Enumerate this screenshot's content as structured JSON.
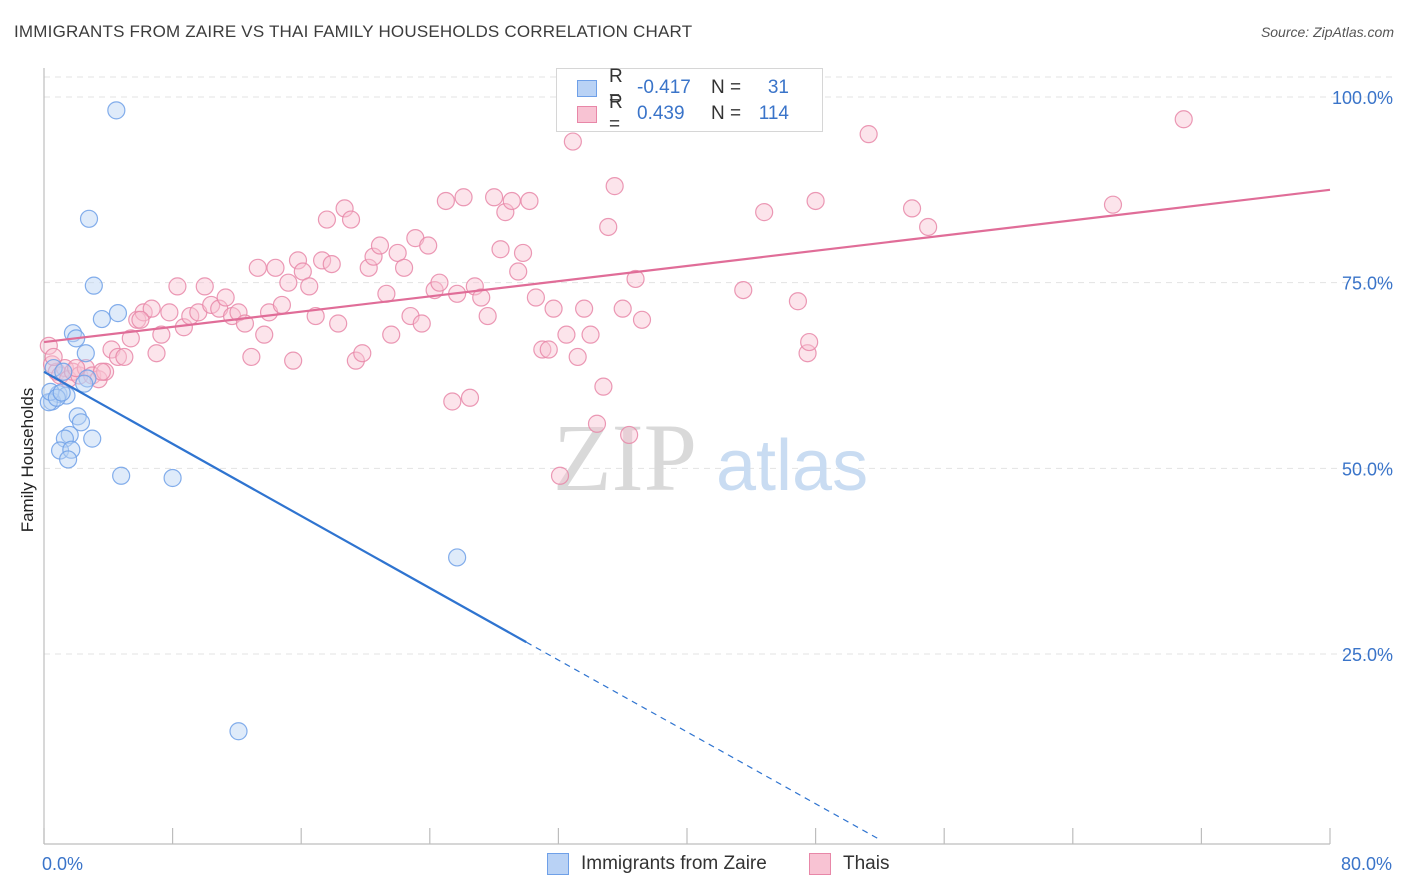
{
  "header": {
    "title": "IMMIGRANTS FROM ZAIRE VS THAI FAMILY HOUSEHOLDS CORRELATION CHART",
    "source": "Source: ZipAtlas.com"
  },
  "watermark": {
    "zip": "ZIP",
    "atlas": "atlas"
  },
  "legend": {
    "rows": [
      {
        "r_label": "R =",
        "r_value": "-0.417",
        "n_label": "N =",
        "n_value": "31",
        "color": "#6fa0e8",
        "fill": "#b9d2f5"
      },
      {
        "r_label": "R =",
        "r_value": "0.439",
        "n_label": "N =",
        "n_value": "114",
        "color": "#e887a8",
        "fill": "#f8c3d3"
      }
    ]
  },
  "bottom_legend": {
    "items": [
      {
        "label": "Immigrants from Zaire",
        "color": "#6fa0e8",
        "fill": "#b9d2f5"
      },
      {
        "label": "Thais",
        "color": "#e887a8",
        "fill": "#f8c3d3"
      }
    ]
  },
  "chart_data": {
    "type": "scatter",
    "title": "IMMIGRANTS FROM ZAIRE VS THAI FAMILY HOUSEHOLDS CORRELATION CHART",
    "xlabel": "",
    "ylabel": "Family Households",
    "xlim": [
      0,
      80
    ],
    "ylim": [
      0,
      103
    ],
    "x_tick_labels": [
      {
        "value": 0,
        "label": "0.0%"
      },
      {
        "value": 80,
        "label": "80.0%"
      }
    ],
    "x_minor_ticks": [
      0,
      8,
      16,
      24,
      32,
      40,
      48,
      56,
      64,
      72,
      80
    ],
    "y_ticks": [
      {
        "value": 25,
        "label": "25.0%"
      },
      {
        "value": 50,
        "label": "50.0%"
      },
      {
        "value": 75,
        "label": "75.0%"
      },
      {
        "value": 100,
        "label": "100.0%"
      }
    ],
    "grid": true,
    "series": [
      {
        "name": "Immigrants from Zaire",
        "color": "#6fa0e8",
        "fill": "#b9d2f5",
        "line_color": "#2f74d0",
        "trend": {
          "x0": 0,
          "y0": 63.0,
          "x1": 30.0,
          "y1": 26.6,
          "x_dash_end": 52,
          "y_dash_end": 0
        },
        "points": [
          [
            4.5,
            98.2
          ],
          [
            2.8,
            83.6
          ],
          [
            3.1,
            74.6
          ],
          [
            4.6,
            70.9
          ],
          [
            3.6,
            70.1
          ],
          [
            1.8,
            68.2
          ],
          [
            2.0,
            67.5
          ],
          [
            2.6,
            65.5
          ],
          [
            0.6,
            63.5
          ],
          [
            1.2,
            63.0
          ],
          [
            2.7,
            62.1
          ],
          [
            2.5,
            61.4
          ],
          [
            0.9,
            60.0
          ],
          [
            1.4,
            59.8
          ],
          [
            0.5,
            59.0
          ],
          [
            0.3,
            58.9
          ],
          [
            2.1,
            57.0
          ],
          [
            2.3,
            56.2
          ],
          [
            1.6,
            54.5
          ],
          [
            1.3,
            54.0
          ],
          [
            3.0,
            54.0
          ],
          [
            1.0,
            52.4
          ],
          [
            1.7,
            52.5
          ],
          [
            1.5,
            51.2
          ],
          [
            4.8,
            49.0
          ],
          [
            8.0,
            48.7
          ],
          [
            25.7,
            38.0
          ],
          [
            12.1,
            14.6
          ],
          [
            0.4,
            60.3
          ],
          [
            0.8,
            59.5
          ],
          [
            1.1,
            60.2
          ]
        ]
      },
      {
        "name": "Thais",
        "color": "#e887a8",
        "fill": "#f8c3d3",
        "line_color": "#e06d98",
        "trend": {
          "x0": 0,
          "y0": 67.0,
          "x1": 80.0,
          "y1": 87.5
        },
        "points": [
          [
            0.3,
            66.5
          ],
          [
            0.5,
            64.0
          ],
          [
            0.8,
            63.0
          ],
          [
            1.0,
            62.5
          ],
          [
            1.3,
            63.5
          ],
          [
            1.5,
            62.0
          ],
          [
            1.8,
            63.0
          ],
          [
            2.2,
            62.5
          ],
          [
            2.6,
            63.5
          ],
          [
            3.0,
            62.5
          ],
          [
            3.4,
            62.0
          ],
          [
            3.8,
            63.0
          ],
          [
            4.2,
            66.0
          ],
          [
            4.6,
            65.0
          ],
          [
            5.0,
            65.0
          ],
          [
            5.4,
            67.5
          ],
          [
            5.8,
            70.0
          ],
          [
            6.2,
            71.0
          ],
          [
            6.7,
            71.5
          ],
          [
            7.0,
            65.5
          ],
          [
            7.3,
            68.0
          ],
          [
            7.8,
            71.0
          ],
          [
            8.3,
            74.5
          ],
          [
            8.7,
            69.0
          ],
          [
            9.1,
            70.5
          ],
          [
            9.6,
            71.0
          ],
          [
            10.0,
            74.5
          ],
          [
            10.4,
            72.0
          ],
          [
            10.9,
            71.5
          ],
          [
            11.3,
            73.0
          ],
          [
            11.7,
            70.5
          ],
          [
            12.1,
            71.0
          ],
          [
            12.5,
            69.5
          ],
          [
            12.9,
            65.0
          ],
          [
            13.3,
            77.0
          ],
          [
            13.7,
            68.0
          ],
          [
            14.0,
            71.0
          ],
          [
            14.4,
            77.0
          ],
          [
            14.8,
            72.0
          ],
          [
            15.2,
            75.0
          ],
          [
            15.5,
            64.5
          ],
          [
            15.8,
            78.0
          ],
          [
            16.1,
            76.5
          ],
          [
            16.5,
            74.5
          ],
          [
            16.9,
            70.5
          ],
          [
            17.3,
            78.0
          ],
          [
            17.6,
            83.5
          ],
          [
            17.9,
            77.5
          ],
          [
            18.3,
            69.5
          ],
          [
            18.7,
            85.0
          ],
          [
            19.1,
            83.5
          ],
          [
            19.4,
            64.5
          ],
          [
            19.8,
            65.5
          ],
          [
            20.2,
            77.0
          ],
          [
            20.5,
            78.5
          ],
          [
            20.9,
            80.0
          ],
          [
            21.3,
            73.5
          ],
          [
            21.6,
            68.0
          ],
          [
            22.0,
            79.0
          ],
          [
            22.4,
            77.0
          ],
          [
            22.8,
            70.5
          ],
          [
            23.1,
            81.0
          ],
          [
            23.5,
            69.5
          ],
          [
            23.9,
            80.0
          ],
          [
            24.3,
            74.0
          ],
          [
            24.6,
            75.0
          ],
          [
            25.0,
            86.0
          ],
          [
            25.4,
            59.0
          ],
          [
            25.7,
            73.5
          ],
          [
            26.1,
            86.5
          ],
          [
            26.5,
            59.5
          ],
          [
            26.8,
            74.5
          ],
          [
            27.2,
            73.0
          ],
          [
            27.6,
            70.5
          ],
          [
            28.0,
            86.5
          ],
          [
            28.4,
            79.5
          ],
          [
            28.7,
            84.5
          ],
          [
            29.1,
            86.0
          ],
          [
            29.5,
            76.5
          ],
          [
            29.8,
            79.0
          ],
          [
            30.2,
            86.0
          ],
          [
            30.6,
            73.0
          ],
          [
            31.0,
            66.0
          ],
          [
            31.4,
            66.0
          ],
          [
            31.7,
            71.5
          ],
          [
            32.1,
            49.0
          ],
          [
            32.5,
            68.0
          ],
          [
            32.9,
            94.0
          ],
          [
            33.2,
            65.0
          ],
          [
            33.6,
            71.5
          ],
          [
            34.0,
            68.0
          ],
          [
            34.4,
            56.0
          ],
          [
            34.8,
            61.0
          ],
          [
            35.1,
            82.5
          ],
          [
            35.5,
            88.0
          ],
          [
            36.0,
            71.5
          ],
          [
            36.4,
            54.5
          ],
          [
            36.8,
            75.5
          ],
          [
            37.2,
            70.0
          ],
          [
            43.5,
            74.0
          ],
          [
            44.8,
            84.5
          ],
          [
            46.9,
            72.5
          ],
          [
            47.5,
            65.5
          ],
          [
            47.6,
            67.0
          ],
          [
            48.0,
            86.0
          ],
          [
            51.3,
            95.0
          ],
          [
            54.0,
            85.0
          ],
          [
            55.0,
            82.5
          ],
          [
            66.5,
            85.5
          ],
          [
            70.9,
            97.0
          ],
          [
            0.6,
            65.0
          ],
          [
            2.0,
            63.5
          ],
          [
            3.6,
            63.0
          ],
          [
            6.0,
            70.0
          ]
        ]
      }
    ]
  }
}
